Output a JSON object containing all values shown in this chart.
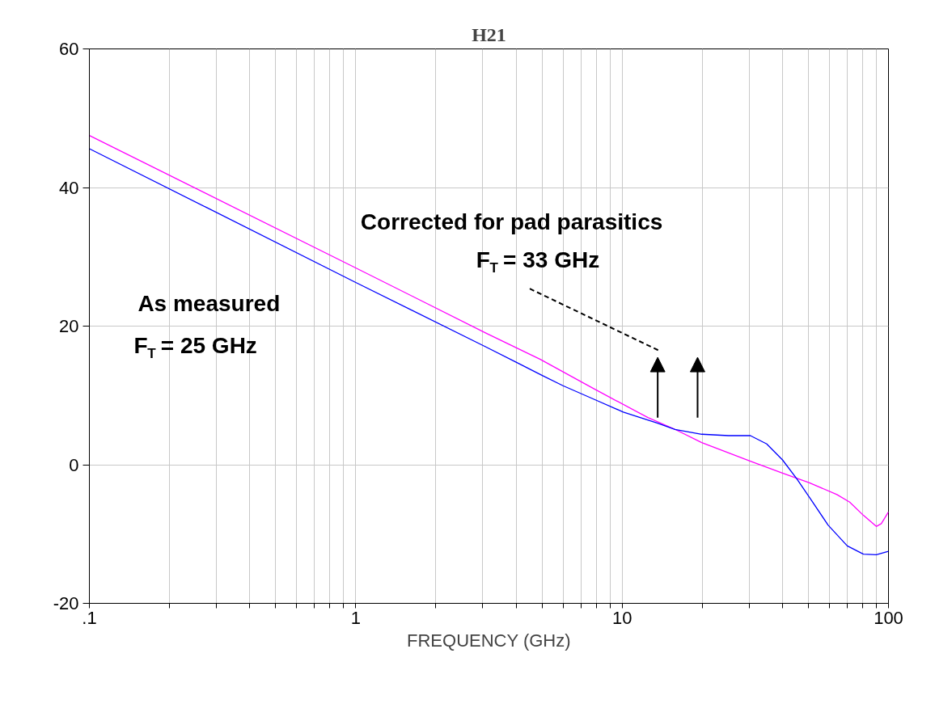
{
  "chart_data": {
    "type": "line",
    "title": "H21",
    "xlabel": "FREQUENCY (GHz)",
    "log": "x",
    "grid": true,
    "marker": "none",
    "line_style": "solid",
    "xlim": [
      0.1,
      100
    ],
    "ylim": [
      -20,
      60
    ],
    "xticks": [
      {
        "value": 0.1,
        "label": ".1"
      },
      {
        "value": 0.2,
        "label": null
      },
      {
        "value": 0.3,
        "label": null
      },
      {
        "value": 0.4,
        "label": null
      },
      {
        "value": 0.5,
        "label": null
      },
      {
        "value": 0.6,
        "label": null
      },
      {
        "value": 0.7,
        "label": null
      },
      {
        "value": 0.8,
        "label": null
      },
      {
        "value": 0.9,
        "label": null
      },
      1,
      {
        "value": 2,
        "label": null
      },
      {
        "value": 3,
        "label": null
      },
      {
        "value": 4,
        "label": null
      },
      {
        "value": 5,
        "label": null
      },
      {
        "value": 6,
        "label": null
      },
      {
        "value": 7,
        "label": null
      },
      {
        "value": 8,
        "label": null
      },
      {
        "value": 9,
        "label": null
      },
      10,
      {
        "value": 20,
        "label": null
      },
      {
        "value": 30,
        "label": null
      },
      {
        "value": 40,
        "label": null
      },
      {
        "value": 50,
        "label": null
      },
      {
        "value": 60,
        "label": null
      },
      {
        "value": 70,
        "label": null
      },
      {
        "value": 80,
        "label": null
      },
      {
        "value": 90,
        "label": null
      },
      100
    ],
    "yticks": [
      -20,
      0,
      20,
      40,
      60
    ],
    "series": [
      {
        "color": "#ff00ff",
        "x": [
          0.1,
          1,
          3.08,
          4.93,
          7.8,
          12.5,
          15.8,
          19.9,
          30.3,
          40,
          50.5,
          64,
          71.5,
          80.5,
          90,
          94,
          100
        ],
        "values": [
          47.5,
          28.4,
          19.0,
          15.2,
          11.0,
          6.8,
          5.1,
          3.2,
          0.5,
          -1.2,
          -2.6,
          -4.3,
          -5.4,
          -7.3,
          -8.9,
          -8.5,
          -6.8
        ]
      },
      {
        "color": "#0000ff",
        "x": [
          0.1,
          1,
          3.08,
          4.0,
          5.0,
          6.0,
          8.0,
          10.1,
          13.6,
          15.8,
          19.9,
          25.1,
          30.3,
          34.9,
          40,
          45.2,
          50.5,
          59.3,
          70,
          80.5,
          90,
          100
        ],
        "values": [
          45.6,
          26.3,
          17.0,
          14.8,
          12.9,
          11.4,
          9.3,
          7.6,
          6.0,
          5.1,
          4.4,
          4.2,
          4.2,
          3.0,
          0.7,
          -2.0,
          -4.7,
          -8.7,
          -11.7,
          -12.9,
          -13.0,
          -12.5
        ]
      }
    ],
    "annotations": [
      "As measured",
      "F$_{T}$ = 25 GHz",
      "Corrected for pad parasitics",
      "F$_{T}$ = 33 GHz"
    ]
  }
}
